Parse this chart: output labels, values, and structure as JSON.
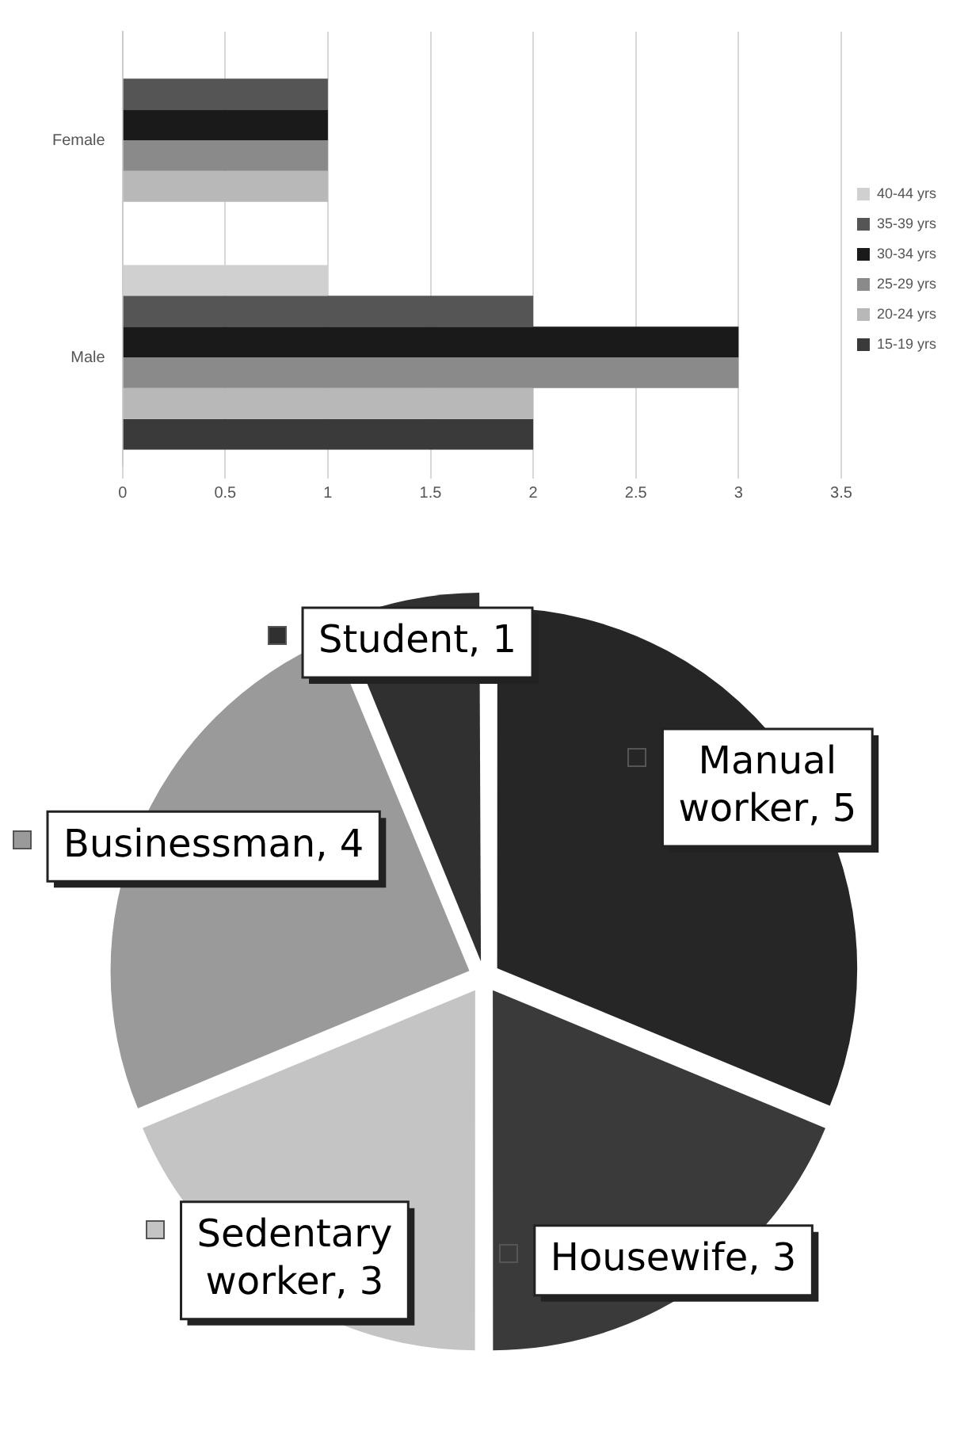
{
  "chart_data": [
    {
      "type": "bar",
      "orientation": "horizontal",
      "categories": [
        "Female",
        "Male"
      ],
      "series": [
        {
          "name": "40-44 yrs",
          "color": "#d0d0d0",
          "values": [
            0,
            1
          ]
        },
        {
          "name": "35-39 yrs",
          "color": "#555555",
          "values": [
            1,
            2
          ]
        },
        {
          "name": "30-34 yrs",
          "color": "#1a1a1a",
          "values": [
            1,
            3
          ]
        },
        {
          "name": "25-29 yrs",
          "color": "#8a8a8a",
          "values": [
            1,
            3
          ]
        },
        {
          "name": "20-24 yrs",
          "color": "#b8b8b8",
          "values": [
            1,
            2
          ]
        },
        {
          "name": "15-19 yrs",
          "color": "#3a3a3a",
          "values": [
            0,
            2
          ]
        }
      ],
      "xlim": [
        0,
        3.5
      ],
      "xticks": [
        0,
        0.5,
        1,
        1.5,
        2,
        2.5,
        3,
        3.5
      ],
      "grid": "x",
      "legend": "right"
    },
    {
      "type": "pie",
      "categories": [
        "Manual worker",
        "Housewife",
        "Sedentary worker",
        "Businessman",
        "Student"
      ],
      "values": [
        5,
        3,
        3,
        4,
        1
      ],
      "colors": [
        "#262626",
        "#3a3a3a",
        "#c4c4c4",
        "#9a9a9a",
        "#303030"
      ],
      "value_labels": [
        ", 5",
        ", 3",
        ", 3",
        ", 4",
        ", 1"
      ],
      "legend": "left"
    }
  ]
}
